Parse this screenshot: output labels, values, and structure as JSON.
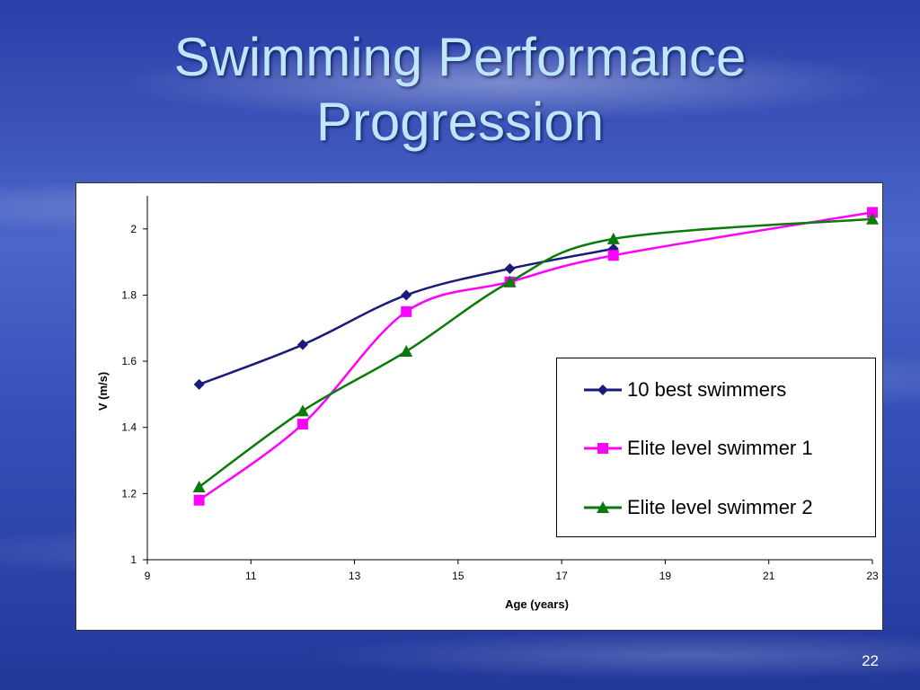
{
  "slide": {
    "title_line1": "Swimming Performance",
    "title_line2": "Progression",
    "page_number": "22"
  },
  "chart_data": {
    "type": "line",
    "xlabel": "Age (years)",
    "ylabel": "V (m/s)",
    "xlim": [
      9,
      23
    ],
    "ylim": [
      1,
      2.1
    ],
    "x_ticks": [
      "9",
      "11",
      "13",
      "15",
      "17",
      "19",
      "21",
      "23"
    ],
    "y_ticks": [
      "1",
      "1.2",
      "1.4",
      "1.6",
      "1.8",
      "2"
    ],
    "legend_position": "right",
    "series": [
      {
        "name": "10 best swimmers",
        "color": "#1a1a7a",
        "marker": "diamond",
        "x": [
          10,
          12,
          14,
          16,
          18
        ],
        "y": [
          1.53,
          1.65,
          1.8,
          1.88,
          1.94
        ]
      },
      {
        "name": "Elite level swimmer 1",
        "color": "#ff00ff",
        "marker": "square",
        "x": [
          10,
          12,
          14,
          16,
          18,
          23
        ],
        "y": [
          1.18,
          1.41,
          1.75,
          1.84,
          1.92,
          2.05
        ]
      },
      {
        "name": "Elite level swimmer 2",
        "color": "#0a7a0a",
        "marker": "triangle",
        "x": [
          10,
          12,
          14,
          16,
          18,
          23
        ],
        "y": [
          1.22,
          1.45,
          1.63,
          1.84,
          1.97,
          2.03
        ]
      }
    ]
  }
}
